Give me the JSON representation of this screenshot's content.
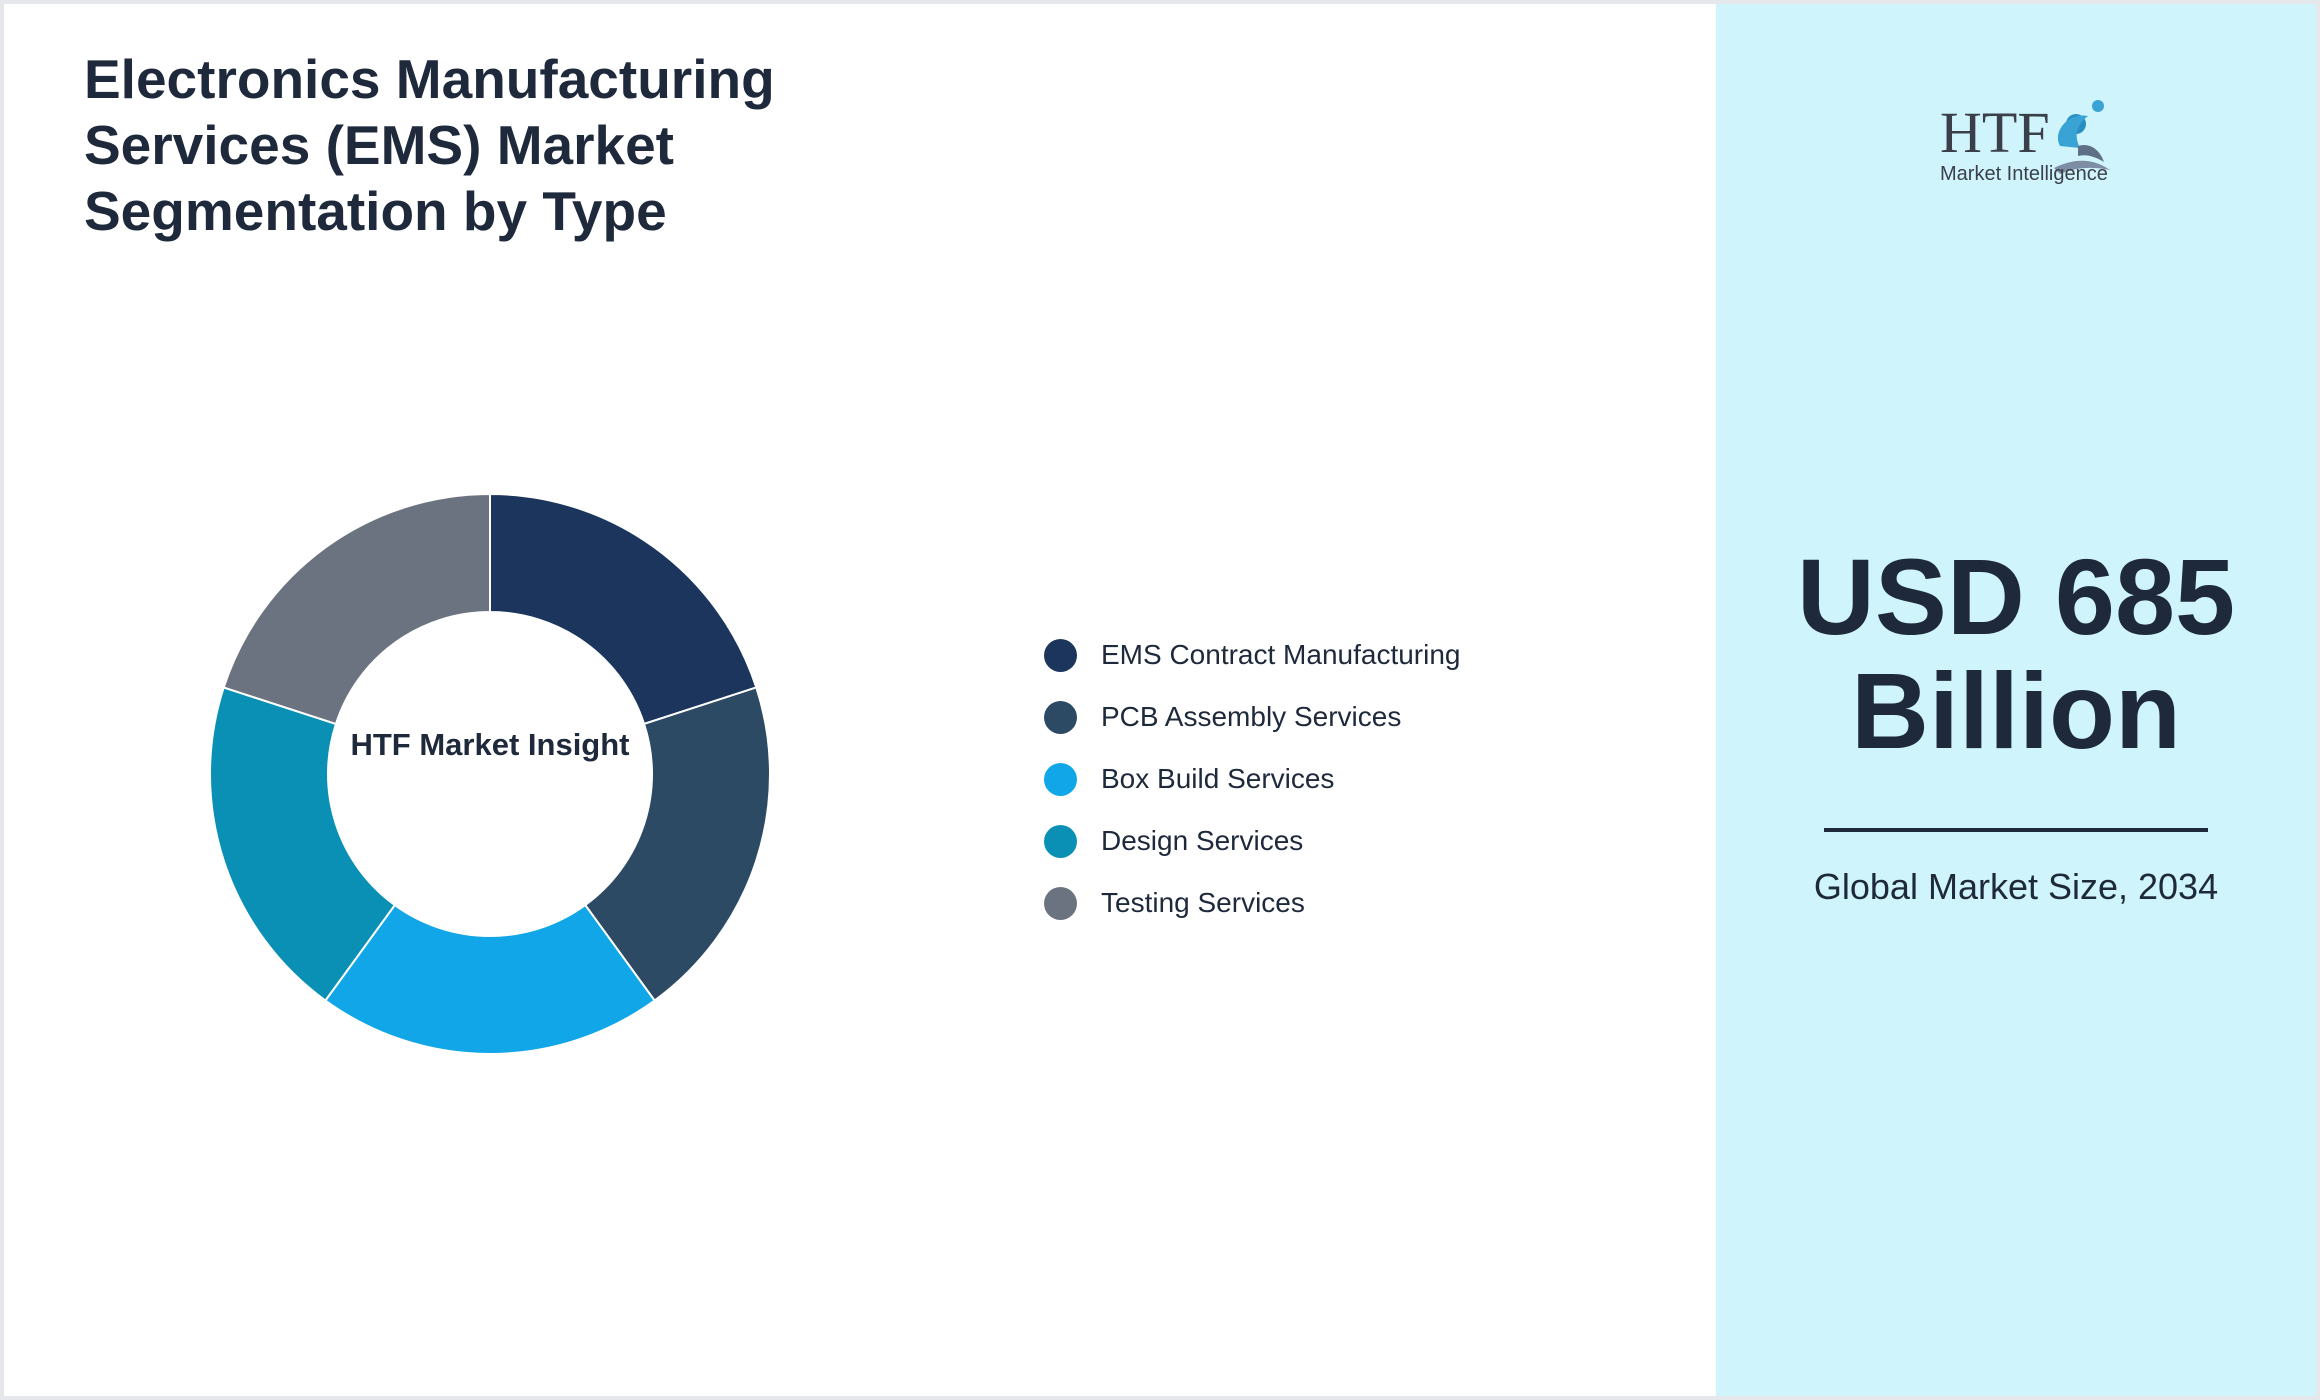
{
  "title": "Electronics Manufacturing Services (EMS) Market Segmentation by Type",
  "center_label": "HTF Market Insight",
  "logo": {
    "brand": "HTF",
    "tagline": "Market Intelligence"
  },
  "market": {
    "value": "USD 685 Billion",
    "caption": "Global Market Size, 2034"
  },
  "colors": {
    "side_panel": "#cff4fc",
    "text": "#1e293b"
  },
  "chart_data": {
    "type": "pie",
    "donut": true,
    "legend_position": "right",
    "categories": [
      "EMS Contract Manufacturing",
      "PCB Assembly Services",
      "Box Build Services",
      "Design Services",
      "Testing Services"
    ],
    "values": [
      20,
      20,
      20,
      20,
      20
    ],
    "colors": [
      "#1b355c",
      "#2c4a63",
      "#10a6e7",
      "#0a90b5",
      "#6b7280"
    ]
  }
}
